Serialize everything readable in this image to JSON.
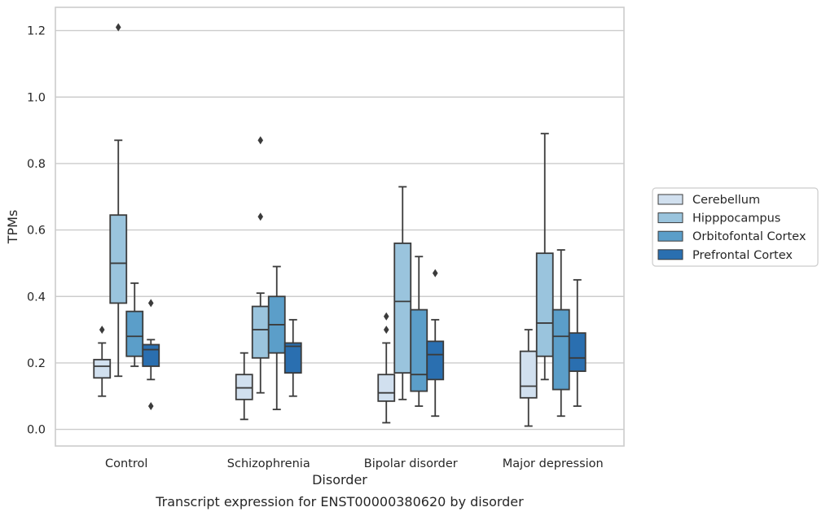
{
  "chart_data": {
    "type": "box",
    "title": "",
    "caption": "Transcript expression for ENST00000380620 by disorder",
    "xlabel": "Disorder",
    "ylabel": "TPMs",
    "ylim": [
      -0.05,
      1.27
    ],
    "yticks": [
      "0.0",
      "0.2",
      "0.4",
      "0.6",
      "0.8",
      "1.0",
      "1.2"
    ],
    "grid": true,
    "legend_position": "right",
    "categories": [
      "Control",
      "Schizophrenia",
      "Bipolar disorder",
      "Major depression"
    ],
    "series": [
      {
        "name": "Cerebellum",
        "color": "#d1e0ef",
        "boxes": [
          {
            "whislo": 0.1,
            "q1": 0.155,
            "med": 0.19,
            "q3": 0.21,
            "whishi": 0.26,
            "fliers": [
              0.3
            ]
          },
          {
            "whislo": 0.03,
            "q1": 0.09,
            "med": 0.125,
            "q3": 0.165,
            "whishi": 0.23,
            "fliers": []
          },
          {
            "whislo": 0.02,
            "q1": 0.085,
            "med": 0.11,
            "q3": 0.165,
            "whishi": 0.26,
            "fliers": [
              0.3,
              0.34
            ]
          },
          {
            "whislo": 0.01,
            "q1": 0.095,
            "med": 0.13,
            "q3": 0.235,
            "whishi": 0.3,
            "fliers": []
          }
        ]
      },
      {
        "name": "Hipppocampus",
        "color": "#9ac4dd",
        "boxes": [
          {
            "whislo": 0.16,
            "q1": 0.38,
            "med": 0.5,
            "q3": 0.645,
            "whishi": 0.87,
            "fliers": [
              1.21
            ]
          },
          {
            "whislo": 0.11,
            "q1": 0.215,
            "med": 0.3,
            "q3": 0.37,
            "whishi": 0.41,
            "fliers": [
              0.64,
              0.87
            ]
          },
          {
            "whislo": 0.09,
            "q1": 0.17,
            "med": 0.385,
            "q3": 0.56,
            "whishi": 0.73,
            "fliers": []
          },
          {
            "whislo": 0.15,
            "q1": 0.22,
            "med": 0.32,
            "q3": 0.53,
            "whishi": 0.89,
            "fliers": []
          }
        ]
      },
      {
        "name": "Orbitofontal Cortex",
        "color": "#5b9ec9",
        "boxes": [
          {
            "whislo": 0.19,
            "q1": 0.22,
            "med": 0.28,
            "q3": 0.355,
            "whishi": 0.44,
            "fliers": []
          },
          {
            "whislo": 0.06,
            "q1": 0.23,
            "med": 0.315,
            "q3": 0.4,
            "whishi": 0.49,
            "fliers": []
          },
          {
            "whislo": 0.07,
            "q1": 0.115,
            "med": 0.165,
            "q3": 0.36,
            "whishi": 0.52,
            "fliers": []
          },
          {
            "whislo": 0.04,
            "q1": 0.12,
            "med": 0.28,
            "q3": 0.36,
            "whishi": 0.54,
            "fliers": []
          }
        ]
      },
      {
        "name": "Prefrontal Cortex",
        "color": "#2a6fb0",
        "boxes": [
          {
            "whislo": 0.15,
            "q1": 0.19,
            "med": 0.24,
            "q3": 0.255,
            "whishi": 0.27,
            "fliers": [
              0.07,
              0.38
            ]
          },
          {
            "whislo": 0.1,
            "q1": 0.17,
            "med": 0.25,
            "q3": 0.26,
            "whishi": 0.33,
            "fliers": []
          },
          {
            "whislo": 0.04,
            "q1": 0.15,
            "med": 0.225,
            "q3": 0.265,
            "whishi": 0.33,
            "fliers": [
              0.47
            ]
          },
          {
            "whislo": 0.07,
            "q1": 0.175,
            "med": 0.215,
            "q3": 0.29,
            "whishi": 0.45,
            "fliers": []
          }
        ]
      }
    ]
  }
}
